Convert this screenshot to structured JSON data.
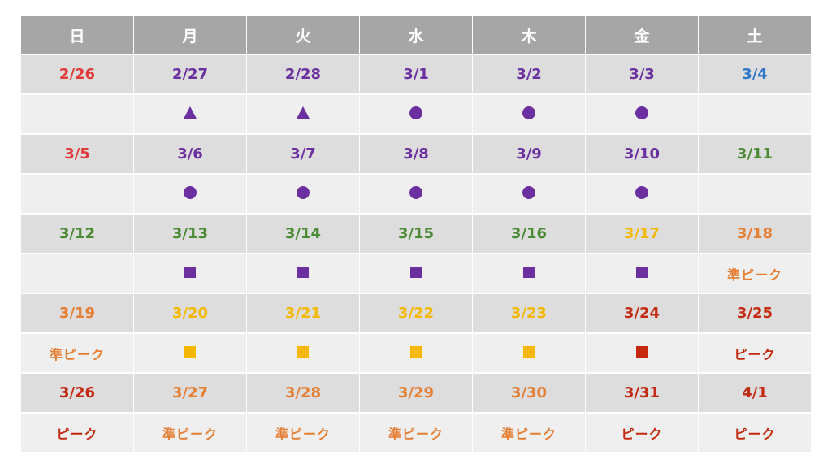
{
  "colors": {
    "sunday": "#e03a3a",
    "saturday_blue": "#2e78c7",
    "purple": "#6b2fa0",
    "green": "#4a8a32",
    "yellow": "#f5b800",
    "orange": "#e67e32",
    "red": "#c42a10"
  },
  "weekdays": [
    "日",
    "月",
    "火",
    "水",
    "木",
    "金",
    "土"
  ],
  "weeks": [
    {
      "dates": [
        {
          "label": "2/26",
          "color": "sunday",
          "normal": true
        },
        {
          "label": "2/27",
          "color": "purple"
        },
        {
          "label": "2/28",
          "color": "purple"
        },
        {
          "label": "3/1",
          "color": "purple"
        },
        {
          "label": "3/2",
          "color": "purple"
        },
        {
          "label": "3/3",
          "color": "purple"
        },
        {
          "label": "3/4",
          "color": "saturday_blue",
          "normal": true
        }
      ],
      "marks": [
        {
          "type": "none"
        },
        {
          "type": "triangle-icon",
          "color": "purple"
        },
        {
          "type": "triangle-icon",
          "color": "purple"
        },
        {
          "type": "circle-icon",
          "color": "purple"
        },
        {
          "type": "circle-icon",
          "color": "purple"
        },
        {
          "type": "circle-icon",
          "color": "purple"
        },
        {
          "type": "none"
        }
      ]
    },
    {
      "dates": [
        {
          "label": "3/5",
          "color": "sunday",
          "normal": true
        },
        {
          "label": "3/6",
          "color": "purple"
        },
        {
          "label": "3/7",
          "color": "purple"
        },
        {
          "label": "3/8",
          "color": "purple"
        },
        {
          "label": "3/9",
          "color": "purple"
        },
        {
          "label": "3/10",
          "color": "purple"
        },
        {
          "label": "3/11",
          "color": "green"
        }
      ],
      "marks": [
        {
          "type": "none"
        },
        {
          "type": "circle-icon",
          "color": "purple"
        },
        {
          "type": "circle-icon",
          "color": "purple"
        },
        {
          "type": "circle-icon",
          "color": "purple"
        },
        {
          "type": "circle-icon",
          "color": "purple"
        },
        {
          "type": "circle-icon",
          "color": "purple"
        },
        {
          "type": "none"
        }
      ]
    },
    {
      "dates": [
        {
          "label": "3/12",
          "color": "green"
        },
        {
          "label": "3/13",
          "color": "green"
        },
        {
          "label": "3/14",
          "color": "green"
        },
        {
          "label": "3/15",
          "color": "green"
        },
        {
          "label": "3/16",
          "color": "green"
        },
        {
          "label": "3/17",
          "color": "yellow"
        },
        {
          "label": "3/18",
          "color": "orange"
        }
      ],
      "marks": [
        {
          "type": "none"
        },
        {
          "type": "square-icon",
          "color": "purple"
        },
        {
          "type": "square-icon",
          "color": "purple"
        },
        {
          "type": "square-icon",
          "color": "purple"
        },
        {
          "type": "square-icon",
          "color": "purple"
        },
        {
          "type": "square-icon",
          "color": "purple"
        },
        {
          "type": "text",
          "text": "準ピーク",
          "color": "orange"
        }
      ]
    },
    {
      "dates": [
        {
          "label": "3/19",
          "color": "orange"
        },
        {
          "label": "3/20",
          "color": "yellow"
        },
        {
          "label": "3/21",
          "color": "yellow"
        },
        {
          "label": "3/22",
          "color": "yellow"
        },
        {
          "label": "3/23",
          "color": "yellow"
        },
        {
          "label": "3/24",
          "color": "red"
        },
        {
          "label": "3/25",
          "color": "red"
        }
      ],
      "marks": [
        {
          "type": "text",
          "text": "準ピーク",
          "color": "orange"
        },
        {
          "type": "square-icon",
          "color": "yellow"
        },
        {
          "type": "square-icon",
          "color": "yellow"
        },
        {
          "type": "square-icon",
          "color": "yellow"
        },
        {
          "type": "square-icon",
          "color": "yellow"
        },
        {
          "type": "square-icon",
          "color": "red"
        },
        {
          "type": "text",
          "text": "ピーク",
          "color": "red"
        }
      ]
    },
    {
      "dates": [
        {
          "label": "3/26",
          "color": "red"
        },
        {
          "label": "3/27",
          "color": "orange"
        },
        {
          "label": "3/28",
          "color": "orange"
        },
        {
          "label": "3/29",
          "color": "orange"
        },
        {
          "label": "3/30",
          "color": "orange"
        },
        {
          "label": "3/31",
          "color": "red"
        },
        {
          "label": "4/1",
          "color": "red"
        }
      ],
      "marks": [
        {
          "type": "text",
          "text": "ピーク",
          "color": "red"
        },
        {
          "type": "text",
          "text": "準ピーク",
          "color": "orange"
        },
        {
          "type": "text",
          "text": "準ピーク",
          "color": "orange"
        },
        {
          "type": "text",
          "text": "準ピーク",
          "color": "orange"
        },
        {
          "type": "text",
          "text": "準ピーク",
          "color": "orange"
        },
        {
          "type": "text",
          "text": "ピーク",
          "color": "red"
        },
        {
          "type": "text",
          "text": "ピーク",
          "color": "red"
        }
      ]
    }
  ]
}
